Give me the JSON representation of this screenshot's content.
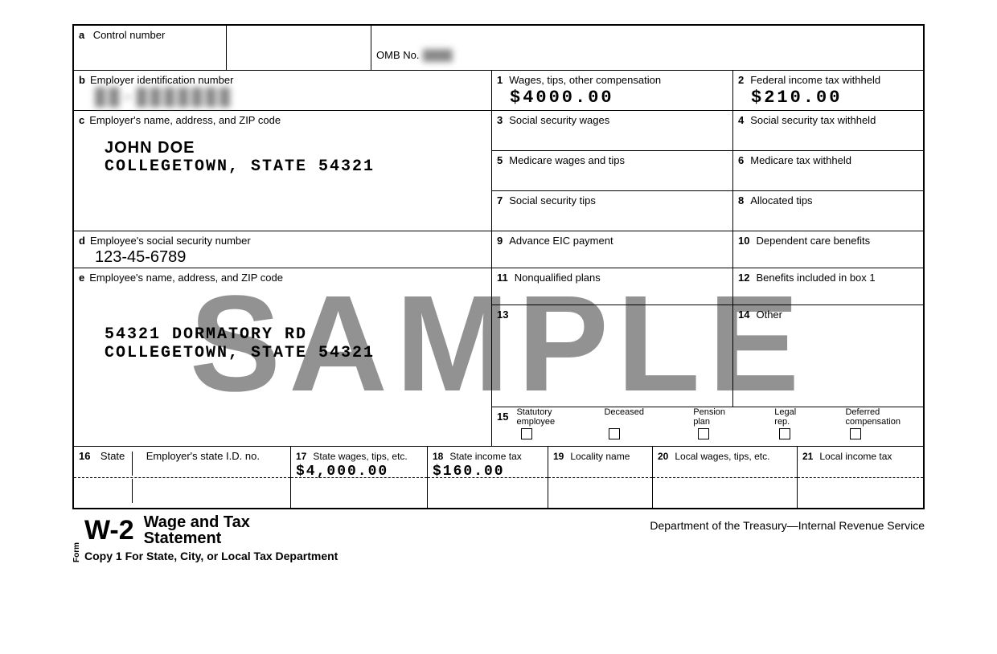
{
  "watermark": "SAMPLE",
  "boxA": {
    "letter": "a",
    "label": "Control number",
    "value": ""
  },
  "omb": {
    "label": "OMB No.",
    "value": "████"
  },
  "boxB": {
    "letter": "b",
    "label": "Employer identification number",
    "value": "██-███████"
  },
  "box1": {
    "num": "1",
    "label": "Wages, tips, other compensation",
    "value": "$4000.00"
  },
  "box2": {
    "num": "2",
    "label": "Federal income tax withheld",
    "value": "$210.00"
  },
  "boxC": {
    "letter": "c",
    "label": "Employer's name, address, and ZIP code",
    "name": "JOHN DOE",
    "address": "COLLEGETOWN, STATE  54321"
  },
  "box3": {
    "num": "3",
    "label": "Social security wages"
  },
  "box4": {
    "num": "4",
    "label": "Social security tax withheld"
  },
  "box5": {
    "num": "5",
    "label": "Medicare wages and tips"
  },
  "box6": {
    "num": "6",
    "label": "Medicare tax withheld"
  },
  "box7": {
    "num": "7",
    "label": "Social security tips"
  },
  "box8": {
    "num": "8",
    "label": "Allocated tips"
  },
  "boxD": {
    "letter": "d",
    "label": "Employee's social security number",
    "value": "123-45-6789"
  },
  "box9": {
    "num": "9",
    "label": "Advance EIC payment"
  },
  "box10": {
    "num": "10",
    "label": "Dependent care benefits"
  },
  "boxE": {
    "letter": "e",
    "label": "Employee's name, address, and ZIP code",
    "line1": "54321 DORMATORY RD",
    "line2": "COLLEGETOWN, STATE  54321"
  },
  "box11": {
    "num": "11",
    "label": "Nonqualified plans"
  },
  "box12": {
    "num": "12",
    "label": "Benefits included in box 1"
  },
  "box13": {
    "num": "13",
    "label": ""
  },
  "box14": {
    "num": "14",
    "label": "Other"
  },
  "box15": {
    "num": "15",
    "items": [
      {
        "label": "Statutory\nemployee"
      },
      {
        "label": "Deceased"
      },
      {
        "label": "Pension\nplan"
      },
      {
        "label": "Legal\nrep."
      },
      {
        "label": "Deferred\ncompensation"
      }
    ]
  },
  "box16": {
    "num": "16",
    "labelA": "State",
    "labelB": "Employer's state I.D. no."
  },
  "box17": {
    "num": "17",
    "label": "State wages, tips, etc.",
    "value": "$4,000.00"
  },
  "box18": {
    "num": "18",
    "label": "State income tax",
    "value": "$160.00"
  },
  "box19": {
    "num": "19",
    "label": "Locality name"
  },
  "box20": {
    "num": "20",
    "label": "Local wages, tips, etc."
  },
  "box21": {
    "num": "21",
    "label": "Local income tax"
  },
  "footer": {
    "formWord": "Form",
    "formCode": "W-2",
    "title1": "Wage and Tax",
    "title2": "Statement",
    "dept": "Department of the Treasury—Internal Revenue Service",
    "copy": "Copy 1 For State, City, or Local Tax Department"
  },
  "colors": {
    "border": "#000000",
    "bg": "#ffffff",
    "watermark": "#808080"
  },
  "font_sizes": {
    "label": 13,
    "value": 20,
    "watermark": 170,
    "footer_code": 34,
    "footer_title": 20
  }
}
